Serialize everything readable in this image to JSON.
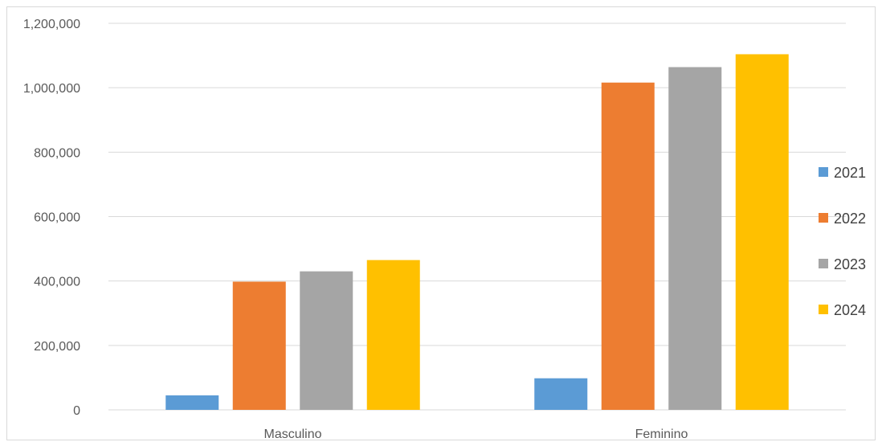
{
  "chart_data": {
    "type": "bar",
    "categories": [
      "Masculino",
      "Feminino"
    ],
    "series": [
      {
        "name": "2021",
        "color": "#5B9BD5",
        "values": [
          45000,
          98000
        ]
      },
      {
        "name": "2022",
        "color": "#ED7D31",
        "values": [
          398000,
          1016000
        ]
      },
      {
        "name": "2023",
        "color": "#A5A5A5",
        "values": [
          430000,
          1064000
        ]
      },
      {
        "name": "2024",
        "color": "#FFC000",
        "values": [
          465000,
          1104000
        ]
      }
    ],
    "y_ticks": [
      "0",
      "200,000",
      "400,000",
      "600,000",
      "800,000",
      "1,000,000",
      "1,200,000"
    ],
    "ylim": [
      0,
      1200000
    ],
    "grid": true,
    "legend_position": "right"
  }
}
